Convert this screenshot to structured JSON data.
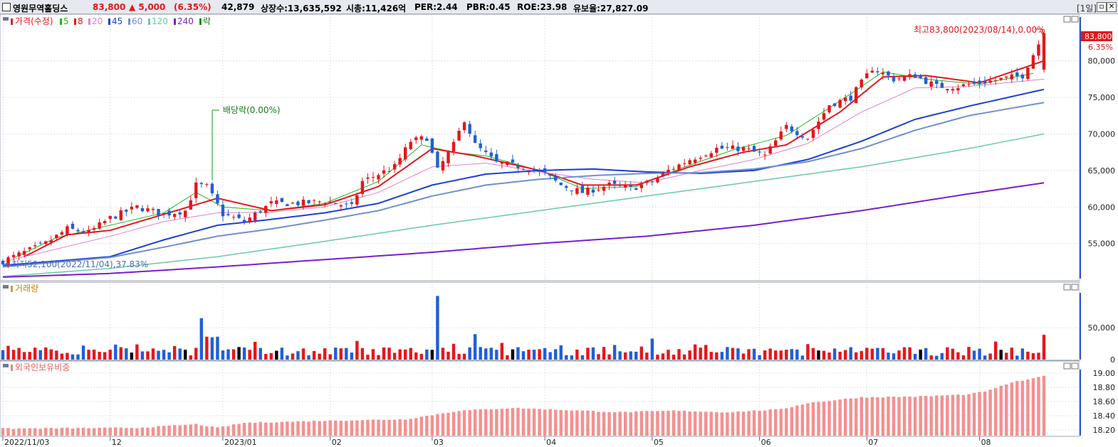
{
  "header": {
    "name": "영원무역홀딩스",
    "price": "83,800",
    "change": "▲ 5,000",
    "change_pct": "(6.35%)",
    "volume": "42,879",
    "listed": "상장수:13,635,592",
    "mcap": "시총:11,426억",
    "per": "PER:2.44",
    "pbr": "PBR:0.45",
    "roe": "ROE:23.98",
    "float": "유보율:27,827.09",
    "period": "[1일]"
  },
  "legend": {
    "price": "가격(수정)",
    "ma": [
      {
        "label": "5",
        "color": "#1fb81f"
      },
      {
        "label": "8",
        "color": "#e5161b"
      },
      {
        "label": "20",
        "color": "#e07fd0"
      },
      {
        "label": "45",
        "color": "#1a3fd6"
      },
      {
        "label": "60",
        "color": "#6f8fd1"
      },
      {
        "label": "120",
        "color": "#6ac9a9"
      },
      {
        "label": "240",
        "color": "#7a1fc8"
      }
    ],
    "ex": "락"
  },
  "annotations": {
    "high": "최고83,800(2023/08/14),0.00%",
    "low": "←최저52,100(2022/11/04),37.83%",
    "dividend": "배당락(0.00%)",
    "last_price": "83,800",
    "last_pct": "6.35%"
  },
  "panels": {
    "volume_title": "거래량",
    "foreign_title": "외국인보유비중"
  },
  "colors": {
    "up": "#e5161b",
    "down": "#1f5fd6",
    "flat": "#000000"
  },
  "chart_data": [
    {
      "type": "candlestick",
      "title": "가격(수정)",
      "y_ticks": [
        "55,000",
        "60,000",
        "65,000",
        "70,000",
        "75,000",
        "80,000"
      ],
      "y_tick_values": [
        55000,
        60000,
        65000,
        70000,
        75000,
        80000
      ],
      "ylim": [
        50200,
        86000
      ],
      "x_ticks": [
        "2022/11/03",
        "12",
        "2023/01",
        "02",
        "03",
        "04",
        "05",
        "06",
        "07",
        "08"
      ],
      "x_tick_index": [
        0,
        20,
        41,
        61,
        80,
        101,
        121,
        141,
        161,
        182
      ],
      "n_days": 195,
      "closes_approx": [
        [
          0,
          52600
        ],
        [
          8,
          55000
        ],
        [
          12,
          57000
        ],
        [
          16,
          56500
        ],
        [
          20,
          58500
        ],
        [
          25,
          60000
        ],
        [
          30,
          59000
        ],
        [
          34,
          59500
        ],
        [
          36,
          63000
        ],
        [
          38,
          62800
        ],
        [
          41,
          59000
        ],
        [
          45,
          58000
        ],
        [
          50,
          60500
        ],
        [
          55,
          60500
        ],
        [
          60,
          60800
        ],
        [
          65,
          60000
        ],
        [
          67,
          63500
        ],
        [
          70,
          64500
        ],
        [
          73,
          65500
        ],
        [
          76,
          69000
        ],
        [
          79,
          69500
        ],
        [
          81,
          65000
        ],
        [
          84,
          68500
        ],
        [
          86,
          72000
        ],
        [
          88,
          68500
        ],
        [
          92,
          66000
        ],
        [
          97,
          65500
        ],
        [
          101,
          64500
        ],
        [
          104,
          63000
        ],
        [
          108,
          62000
        ],
        [
          113,
          63000
        ],
        [
          117,
          62500
        ],
        [
          121,
          63500
        ],
        [
          124,
          65000
        ],
        [
          128,
          66500
        ],
        [
          133,
          68000
        ],
        [
          138,
          68000
        ],
        [
          142,
          67000
        ],
        [
          146,
          71000
        ],
        [
          150,
          69500
        ],
        [
          154,
          74000
        ],
        [
          158,
          75000
        ],
        [
          162,
          79000
        ],
        [
          166,
          77500
        ],
        [
          170,
          78000
        ],
        [
          174,
          76500
        ],
        [
          178,
          76500
        ],
        [
          182,
          77000
        ],
        [
          186,
          77500
        ],
        [
          190,
          78000
        ],
        [
          194,
          83800
        ]
      ],
      "ma_approx": {
        "5": [
          [
            2,
            53000
          ],
          [
            10,
            55800
          ],
          [
            20,
            57500
          ],
          [
            30,
            59200
          ],
          [
            36,
            62000
          ],
          [
            41,
            60000
          ],
          [
            50,
            59500
          ],
          [
            60,
            60500
          ],
          [
            70,
            63500
          ],
          [
            78,
            68500
          ],
          [
            84,
            67500
          ],
          [
            90,
            67000
          ],
          [
            100,
            65000
          ],
          [
            108,
            62500
          ],
          [
            118,
            62800
          ],
          [
            126,
            65200
          ],
          [
            136,
            67800
          ],
          [
            146,
            69800
          ],
          [
            156,
            74500
          ],
          [
            164,
            78500
          ],
          [
            172,
            77500
          ],
          [
            182,
            76800
          ],
          [
            192,
            78300
          ]
        ],
        "8": [
          [
            4,
            53200
          ],
          [
            12,
            56200
          ],
          [
            20,
            56800
          ],
          [
            30,
            59000
          ],
          [
            40,
            61200
          ],
          [
            50,
            59500
          ],
          [
            60,
            60300
          ],
          [
            70,
            62800
          ],
          [
            80,
            68000
          ],
          [
            88,
            67000
          ],
          [
            100,
            65000
          ],
          [
            108,
            63000
          ],
          [
            118,
            63000
          ],
          [
            128,
            65500
          ],
          [
            138,
            67500
          ],
          [
            146,
            68500
          ],
          [
            156,
            73000
          ],
          [
            164,
            77800
          ],
          [
            172,
            78000
          ],
          [
            182,
            77000
          ],
          [
            194,
            80000
          ]
        ],
        "20": [
          [
            0,
            52500
          ],
          [
            20,
            56000
          ],
          [
            30,
            58000
          ],
          [
            40,
            59200
          ],
          [
            50,
            59300
          ],
          [
            60,
            60000
          ],
          [
            70,
            62000
          ],
          [
            80,
            65500
          ],
          [
            90,
            66000
          ],
          [
            100,
            64800
          ],
          [
            110,
            63800
          ],
          [
            120,
            63300
          ],
          [
            130,
            65000
          ],
          [
            140,
            66500
          ],
          [
            150,
            68700
          ],
          [
            160,
            73000
          ],
          [
            170,
            76300
          ],
          [
            180,
            76500
          ],
          [
            194,
            77500
          ]
        ],
        "45": [
          [
            0,
            52000
          ],
          [
            20,
            53200
          ],
          [
            30,
            55500
          ],
          [
            40,
            57500
          ],
          [
            50,
            58300
          ],
          [
            60,
            59200
          ],
          [
            70,
            60500
          ],
          [
            80,
            63000
          ],
          [
            90,
            64500
          ],
          [
            100,
            65000
          ],
          [
            110,
            65200
          ],
          [
            120,
            64800
          ],
          [
            130,
            64600
          ],
          [
            140,
            65000
          ],
          [
            150,
            66500
          ],
          [
            160,
            69000
          ],
          [
            170,
            72000
          ],
          [
            180,
            73800
          ],
          [
            194,
            76100
          ]
        ],
        "60": [
          [
            0,
            51800
          ],
          [
            20,
            53100
          ],
          [
            30,
            54500
          ],
          [
            40,
            56000
          ],
          [
            50,
            57000
          ],
          [
            60,
            58200
          ],
          [
            70,
            59500
          ],
          [
            80,
            61500
          ],
          [
            90,
            63000
          ],
          [
            100,
            63800
          ],
          [
            110,
            64300
          ],
          [
            120,
            64600
          ],
          [
            130,
            64700
          ],
          [
            140,
            65200
          ],
          [
            150,
            66200
          ],
          [
            160,
            68000
          ],
          [
            170,
            70500
          ],
          [
            180,
            72500
          ],
          [
            194,
            74300
          ]
        ],
        "120": [
          [
            0,
            50500
          ],
          [
            20,
            51600
          ],
          [
            40,
            53200
          ],
          [
            60,
            55300
          ],
          [
            80,
            57500
          ],
          [
            100,
            59500
          ],
          [
            120,
            61500
          ],
          [
            140,
            63500
          ],
          [
            160,
            65500
          ],
          [
            180,
            68000
          ],
          [
            194,
            70000
          ]
        ],
        "240": [
          [
            0,
            50400
          ],
          [
            20,
            50900
          ],
          [
            40,
            51800
          ],
          [
            60,
            52800
          ],
          [
            80,
            53800
          ],
          [
            100,
            55000
          ],
          [
            120,
            56000
          ],
          [
            140,
            57500
          ],
          [
            160,
            59500
          ],
          [
            180,
            61800
          ],
          [
            194,
            63300
          ]
        ]
      }
    },
    {
      "type": "bar",
      "title": "거래량",
      "y_ticks": [
        "0",
        "50,000"
      ],
      "y_tick_values": [
        0,
        50000
      ],
      "ylim": [
        0,
        105000
      ]
    },
    {
      "type": "bar",
      "title": "외국인보유비중",
      "y_ticks": [
        "18.20",
        "18.40",
        "18.60",
        "18.80",
        "19.00"
      ],
      "y_tick_values": [
        18.2,
        18.4,
        18.6,
        18.8,
        19.0
      ],
      "ylim": [
        18.12,
        19.05
      ]
    }
  ]
}
